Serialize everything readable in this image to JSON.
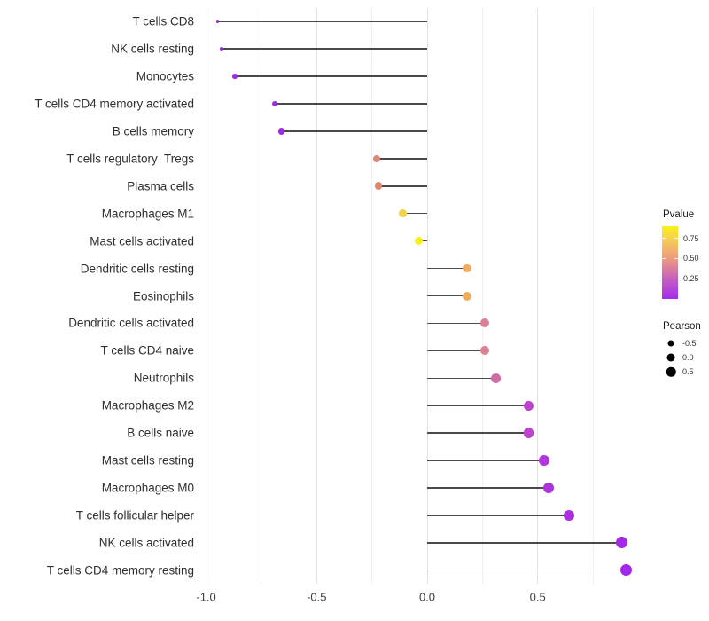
{
  "chart_data": {
    "type": "lollipop",
    "orientation": "horizontal",
    "title": "",
    "xlabel": "",
    "ylabel": "",
    "grid": "vertical-only",
    "background": "#ffffff",
    "categories": [
      "T cells CD8",
      "NK cells resting",
      "Monocytes",
      "T cells CD4 memory activated",
      "B cells memory",
      "T cells regulatory  Tregs",
      "Plasma cells",
      "Macrophages M1",
      "Mast cells activated",
      "Dendritic cells resting",
      "Eosinophils",
      "Dendritic cells activated",
      "T cells CD4 naive",
      "Neutrophils",
      "Macrophages M2",
      "B cells naive",
      "Mast cells resting",
      "Macrophages M0",
      "T cells follicular helper",
      "NK cells activated",
      "T cells CD4 memory resting"
    ],
    "series": [
      {
        "name": "Pearson",
        "values": [
          -0.95,
          -0.93,
          -0.87,
          -0.69,
          -0.66,
          -0.23,
          -0.22,
          -0.11,
          -0.04,
          0.18,
          0.18,
          0.26,
          0.26,
          0.31,
          0.46,
          0.46,
          0.53,
          0.55,
          0.64,
          0.88,
          0.9
        ],
        "dot_colors": [
          "#8F27D8",
          "#9128DB",
          "#9A2BE2",
          "#9C2BE5",
          "#9E2BE5",
          "#DE8873",
          "#DE8873",
          "#EFD24E",
          "#F7EF1E",
          "#F0AC5C",
          "#F0AC5C",
          "#DD7F92",
          "#DD7F92",
          "#D06CA4",
          "#BC43CC",
          "#BC43CC",
          "#B136D9",
          "#AF33DB",
          "#AC2FE0",
          "#A428E8",
          "#A428E8"
        ],
        "dot_diameters": [
          3,
          4,
          5.5,
          6.7,
          7.3,
          8,
          8.7,
          8.7,
          9,
          9.3,
          10,
          10,
          10,
          10.7,
          11.3,
          11.3,
          12,
          12,
          12,
          13.3,
          13.3
        ]
      }
    ],
    "x_axis": {
      "tick_labels": [
        "-1.0",
        "-0.5",
        "0.0",
        "0.5"
      ],
      "tick_values": [
        -1.0,
        -0.5,
        0.0,
        0.5
      ],
      "minor_values": [
        -0.75,
        -0.25,
        0.25,
        0.75
      ],
      "xlim": [
        -1.04,
        1.0
      ]
    }
  },
  "legend": {
    "pvalue": {
      "title": "Pvalue",
      "tick_labels": [
        "0.75",
        "0.50",
        "0.25"
      ],
      "tick_fractions_from_top": [
        0.167,
        0.444,
        0.722
      ],
      "gradient_stops": [
        "#A32BEE",
        "#C760BE",
        "#EC9B7E",
        "#F5D054",
        "#FBF115"
      ],
      "gradient_percents": [
        0,
        28,
        56,
        83,
        100
      ]
    },
    "pearson": {
      "title": "Pearson",
      "dot_color": "#000000",
      "items": [
        {
          "label": "-0.5",
          "diameter": 7
        },
        {
          "label": "0.0",
          "diameter": 9
        },
        {
          "label": "0.5",
          "diameter": 10.5
        }
      ]
    }
  },
  "colors": {
    "stem": "#4a4a4a",
    "grid_major": "#e3e3e3",
    "grid_minor": "#f0f0f0",
    "axis_text": "#3c3c3c",
    "category_text": "#2e2e2e"
  }
}
